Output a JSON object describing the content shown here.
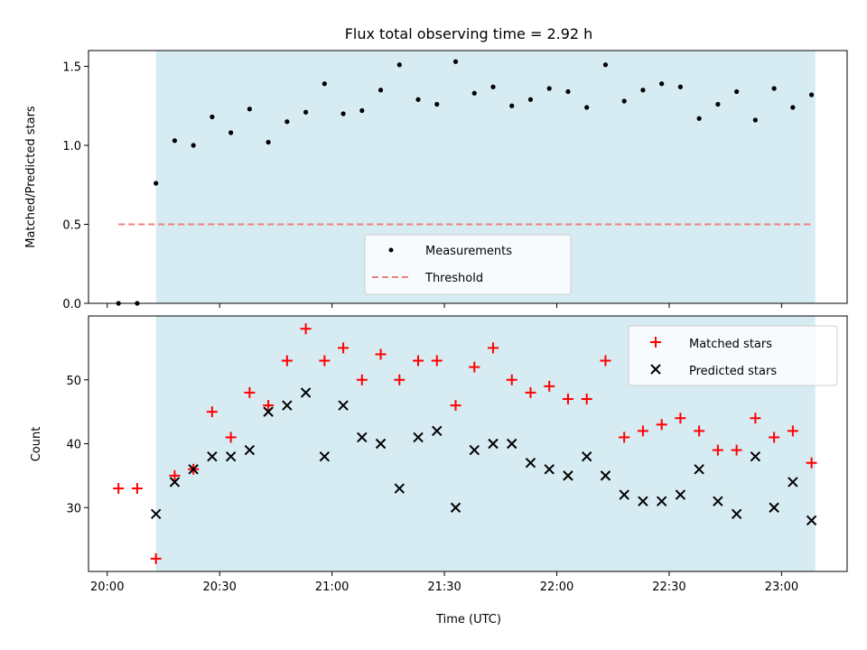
{
  "chart_data": [
    {
      "type": "scatter",
      "title": "Flux total observing time = 2.92 h",
      "xlabel": "",
      "ylabel": "Matched/Predicted stars",
      "ylim": [
        0,
        1.6
      ],
      "yticks": [
        "0.0",
        "0.5",
        "1.0",
        "1.5"
      ],
      "shaded_region": [
        "20:13",
        "23:09"
      ],
      "shaded_color": "#add8e6",
      "legend_position": "lower-center",
      "series": [
        {
          "name": "Measurements",
          "marker": "dot",
          "color": "#000000",
          "x": [
            "20:03",
            "20:08",
            "20:13",
            "20:18",
            "20:23",
            "20:28",
            "20:33",
            "20:38",
            "20:43",
            "20:48",
            "20:53",
            "20:58",
            "21:03",
            "21:08",
            "21:13",
            "21:18",
            "21:23",
            "21:28",
            "21:33",
            "21:38",
            "21:43",
            "21:48",
            "21:53",
            "21:58",
            "22:03",
            "22:08",
            "22:13",
            "22:18",
            "22:23",
            "22:28",
            "22:33",
            "22:38",
            "22:43",
            "22:48",
            "22:53",
            "22:58",
            "23:03",
            "23:08"
          ],
          "values": [
            0.0,
            0.0,
            0.76,
            1.03,
            1.0,
            1.18,
            1.08,
            1.23,
            1.02,
            1.15,
            1.21,
            1.39,
            1.2,
            1.22,
            1.35,
            1.51,
            1.29,
            1.26,
            1.53,
            1.33,
            1.37,
            1.25,
            1.29,
            1.36,
            1.34,
            1.24,
            1.51,
            1.28,
            1.35,
            1.39,
            1.37,
            1.17,
            1.26,
            1.34,
            1.16,
            1.36,
            1.24,
            1.32
          ]
        },
        {
          "name": "Threshold",
          "style": "dashed",
          "color": "#f08080",
          "x": [
            "20:03",
            "23:08"
          ],
          "values": [
            0.5,
            0.5
          ]
        }
      ]
    },
    {
      "type": "scatter",
      "title": "",
      "xlabel": "Time (UTC)",
      "ylabel": "Count",
      "ylim": [
        20,
        60
      ],
      "yticks": [
        "30",
        "40",
        "50"
      ],
      "xticks": [
        "20:00",
        "20:30",
        "21:00",
        "21:30",
        "22:00",
        "22:30",
        "23:00"
      ],
      "shaded_region": [
        "20:13",
        "23:09"
      ],
      "shaded_color": "#add8e6",
      "legend_position": "upper-right",
      "series": [
        {
          "name": "Matched stars",
          "marker": "plus",
          "color": "#ff0000",
          "x": [
            "20:03",
            "20:08",
            "20:13",
            "20:18",
            "20:23",
            "20:28",
            "20:33",
            "20:38",
            "20:43",
            "20:48",
            "20:53",
            "20:58",
            "21:03",
            "21:08",
            "21:13",
            "21:18",
            "21:23",
            "21:28",
            "21:33",
            "21:38",
            "21:43",
            "21:48",
            "21:53",
            "21:58",
            "22:03",
            "22:08",
            "22:13",
            "22:18",
            "22:23",
            "22:28",
            "22:33",
            "22:38",
            "22:43",
            "22:48",
            "22:53",
            "22:58",
            "23:03",
            "23:08"
          ],
          "values": [
            33,
            33,
            22,
            35,
            36,
            45,
            41,
            48,
            46,
            53,
            58,
            53,
            55,
            50,
            54,
            50,
            53,
            53,
            46,
            52,
            55,
            50,
            48,
            49,
            47,
            47,
            53,
            41,
            42,
            43,
            44,
            42,
            39,
            39,
            44,
            41,
            42,
            37
          ]
        },
        {
          "name": "Predicted stars",
          "marker": "x",
          "color": "#000000",
          "x": [
            "20:13",
            "20:18",
            "20:23",
            "20:28",
            "20:33",
            "20:38",
            "20:43",
            "20:48",
            "20:53",
            "20:58",
            "21:03",
            "21:08",
            "21:13",
            "21:18",
            "21:23",
            "21:28",
            "21:33",
            "21:38",
            "21:43",
            "21:48",
            "21:53",
            "21:58",
            "22:03",
            "22:08",
            "22:13",
            "22:18",
            "22:23",
            "22:28",
            "22:33",
            "22:38",
            "22:43",
            "22:48",
            "22:53",
            "22:58",
            "23:03",
            "23:08"
          ],
          "values": [
            29,
            34,
            36,
            38,
            38,
            39,
            45,
            46,
            48,
            38,
            46,
            41,
            40,
            33,
            41,
            42,
            30,
            39,
            40,
            40,
            37,
            36,
            35,
            38,
            35,
            32,
            31,
            31,
            32,
            36,
            31,
            29,
            38,
            30,
            34,
            28
          ]
        }
      ]
    }
  ]
}
